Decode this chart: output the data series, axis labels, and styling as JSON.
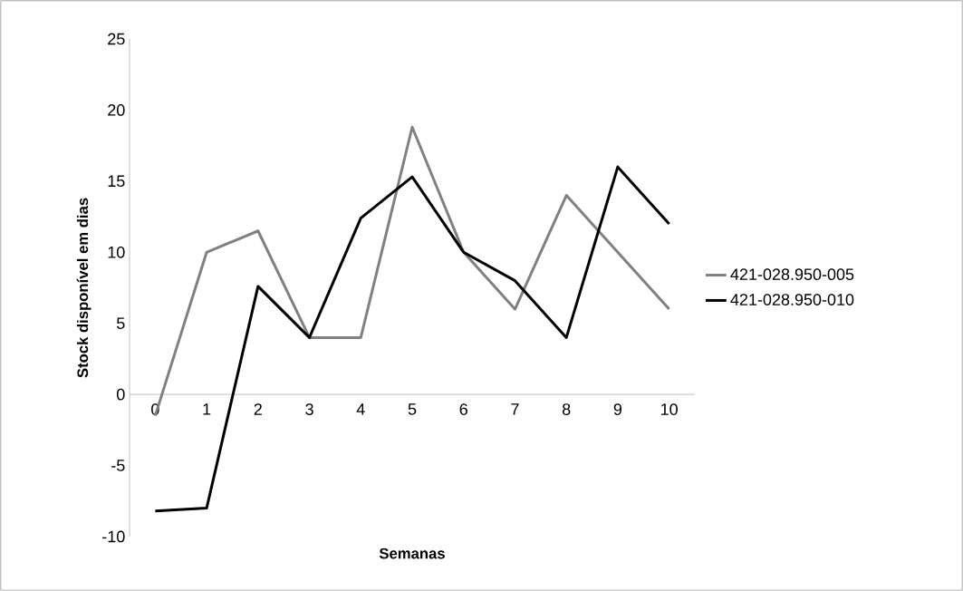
{
  "chart_data": {
    "type": "line",
    "xlabel": "Semanas",
    "ylabel": "Stock disponível em dias",
    "categories": [
      "0",
      "1",
      "2",
      "3",
      "4",
      "5",
      "6",
      "7",
      "8",
      "9",
      "10"
    ],
    "series": [
      {
        "name": "421-028.950-005",
        "color": "#808080",
        "values": [
          -1.5,
          10,
          11.5,
          4,
          4,
          18.8,
          10,
          6,
          14,
          10,
          6
        ]
      },
      {
        "name": "421-028.950-010",
        "color": "#000000",
        "values": [
          -8.2,
          -8,
          7.6,
          4,
          12.4,
          15.3,
          10,
          8,
          4,
          16,
          12
        ]
      }
    ],
    "ylim": [
      -10,
      25
    ],
    "yticks": [
      -10,
      -5,
      0,
      5,
      10,
      15,
      20,
      25
    ],
    "grid": false,
    "legend": "right",
    "marker": "none",
    "line_style": "solid"
  }
}
